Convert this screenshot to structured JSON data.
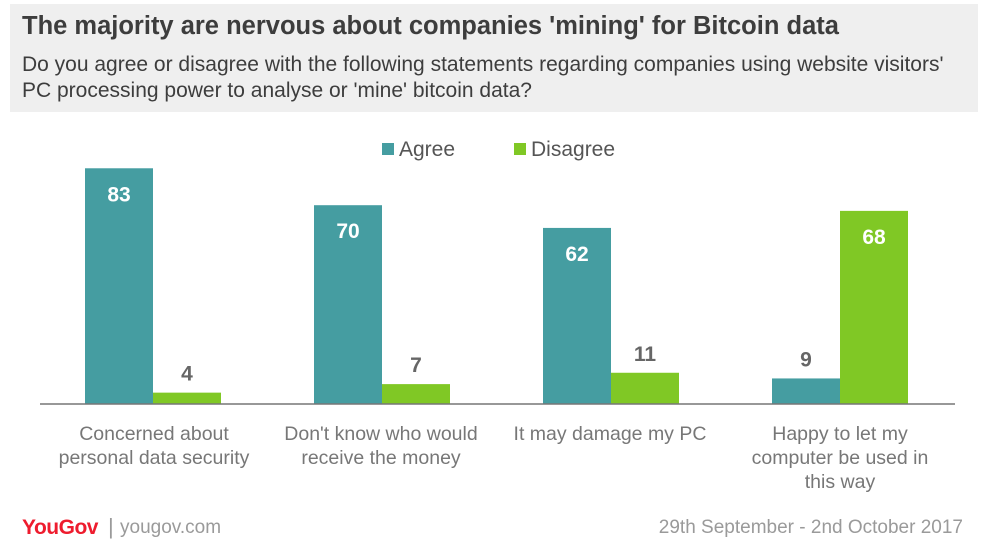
{
  "header": {
    "title": "The majority are nervous about companies 'mining' for Bitcoin data",
    "subtitle": "Do you agree or disagree with the following statements regarding companies using website visitors' PC processing power to analyse or 'mine' bitcoin data?"
  },
  "chart_data": {
    "type": "bar",
    "categories": [
      [
        "Concerned about",
        "personal data security"
      ],
      [
        "Don't know who would",
        "receive the money"
      ],
      [
        "It may damage my PC"
      ],
      [
        "Happy to let my",
        "computer be used in",
        "this way"
      ]
    ],
    "series": [
      {
        "name": "Agree",
        "color": "#459da1",
        "values": [
          83,
          70,
          62,
          9
        ]
      },
      {
        "name": "Disagree",
        "color": "#80c825",
        "values": [
          4,
          7,
          11,
          68
        ]
      }
    ],
    "ylim": [
      0,
      100
    ],
    "legend_position": "top-center",
    "grid": false
  },
  "footer": {
    "logo": "YouGov",
    "separator": "|",
    "site": "yougov.com",
    "date": "29th September - 2nd October 2017"
  }
}
